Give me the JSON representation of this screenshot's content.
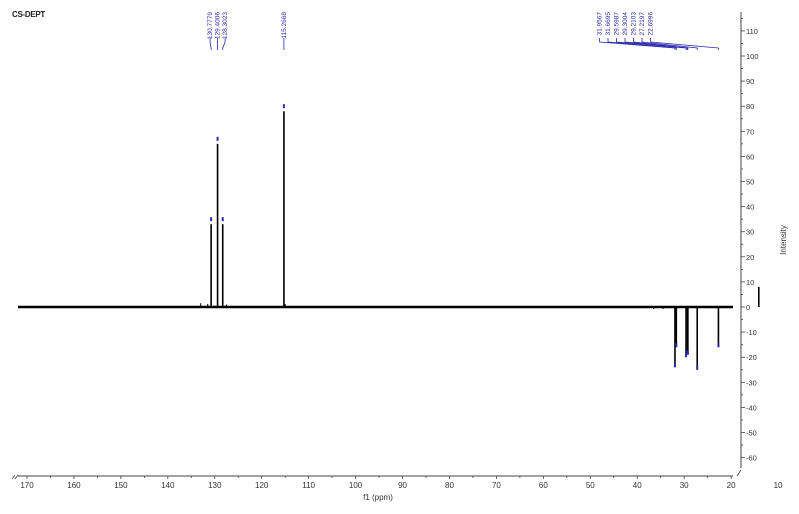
{
  "chart_data": {
    "type": "line",
    "title": "CS-DEPT",
    "xlabel": "f1 (ppm)",
    "ylabel": "Intensity",
    "xlim": [
      172,
      5
    ],
    "ylim": [
      -65,
      117
    ],
    "x_ticks": [
      170,
      160,
      150,
      140,
      130,
      120,
      110,
      100,
      90,
      80,
      70,
      60,
      50,
      40,
      30,
      20,
      10
    ],
    "y_ticks": [
      110,
      100,
      90,
      80,
      70,
      60,
      50,
      40,
      30,
      20,
      10,
      0,
      -10,
      -20,
      -30,
      -40,
      -50,
      -60
    ],
    "grid": false,
    "x_reversed": true,
    "peaks": [
      {
        "ppm": 130.7779,
        "intensity": 33,
        "label": "130.7779"
      },
      {
        "ppm": 129.4006,
        "intensity": 65,
        "label": "129.4006"
      },
      {
        "ppm": 128.3023,
        "intensity": 33,
        "label": "128.3023"
      },
      {
        "ppm": 115.2668,
        "intensity": 78,
        "label": "115.2668"
      },
      {
        "ppm": 31.9567,
        "intensity": -24,
        "label": "31.9567"
      },
      {
        "ppm": 31.6695,
        "intensity": -16,
        "label": "31.6695"
      },
      {
        "ppm": 29.5987,
        "intensity": -20,
        "label": "29.5987"
      },
      {
        "ppm": 29.3004,
        "intensity": -18,
        "label": "29.3004"
      },
      {
        "ppm": 29.2103,
        "intensity": -19,
        "label": "29.2103"
      },
      {
        "ppm": 27.2197,
        "intensity": -25,
        "label": "27.2197"
      },
      {
        "ppm": 22.6996,
        "intensity": -16,
        "label": "22.6996"
      },
      {
        "ppm": 14.1,
        "intensity": 8,
        "label": ""
      }
    ],
    "peak_label_groups": [
      {
        "labels": [
          "130.7779",
          "129.4006",
          "128.3023"
        ]
      },
      {
        "labels": [
          "115.2668"
        ]
      },
      {
        "labels": [
          "31.9567",
          "31.6695",
          "29.5987",
          "29.3004",
          "29.2103",
          "27.2197",
          "22.6996"
        ]
      }
    ],
    "colors": {
      "trace": "#000000",
      "label": "#2b2bb0",
      "axis": "#444444"
    }
  }
}
